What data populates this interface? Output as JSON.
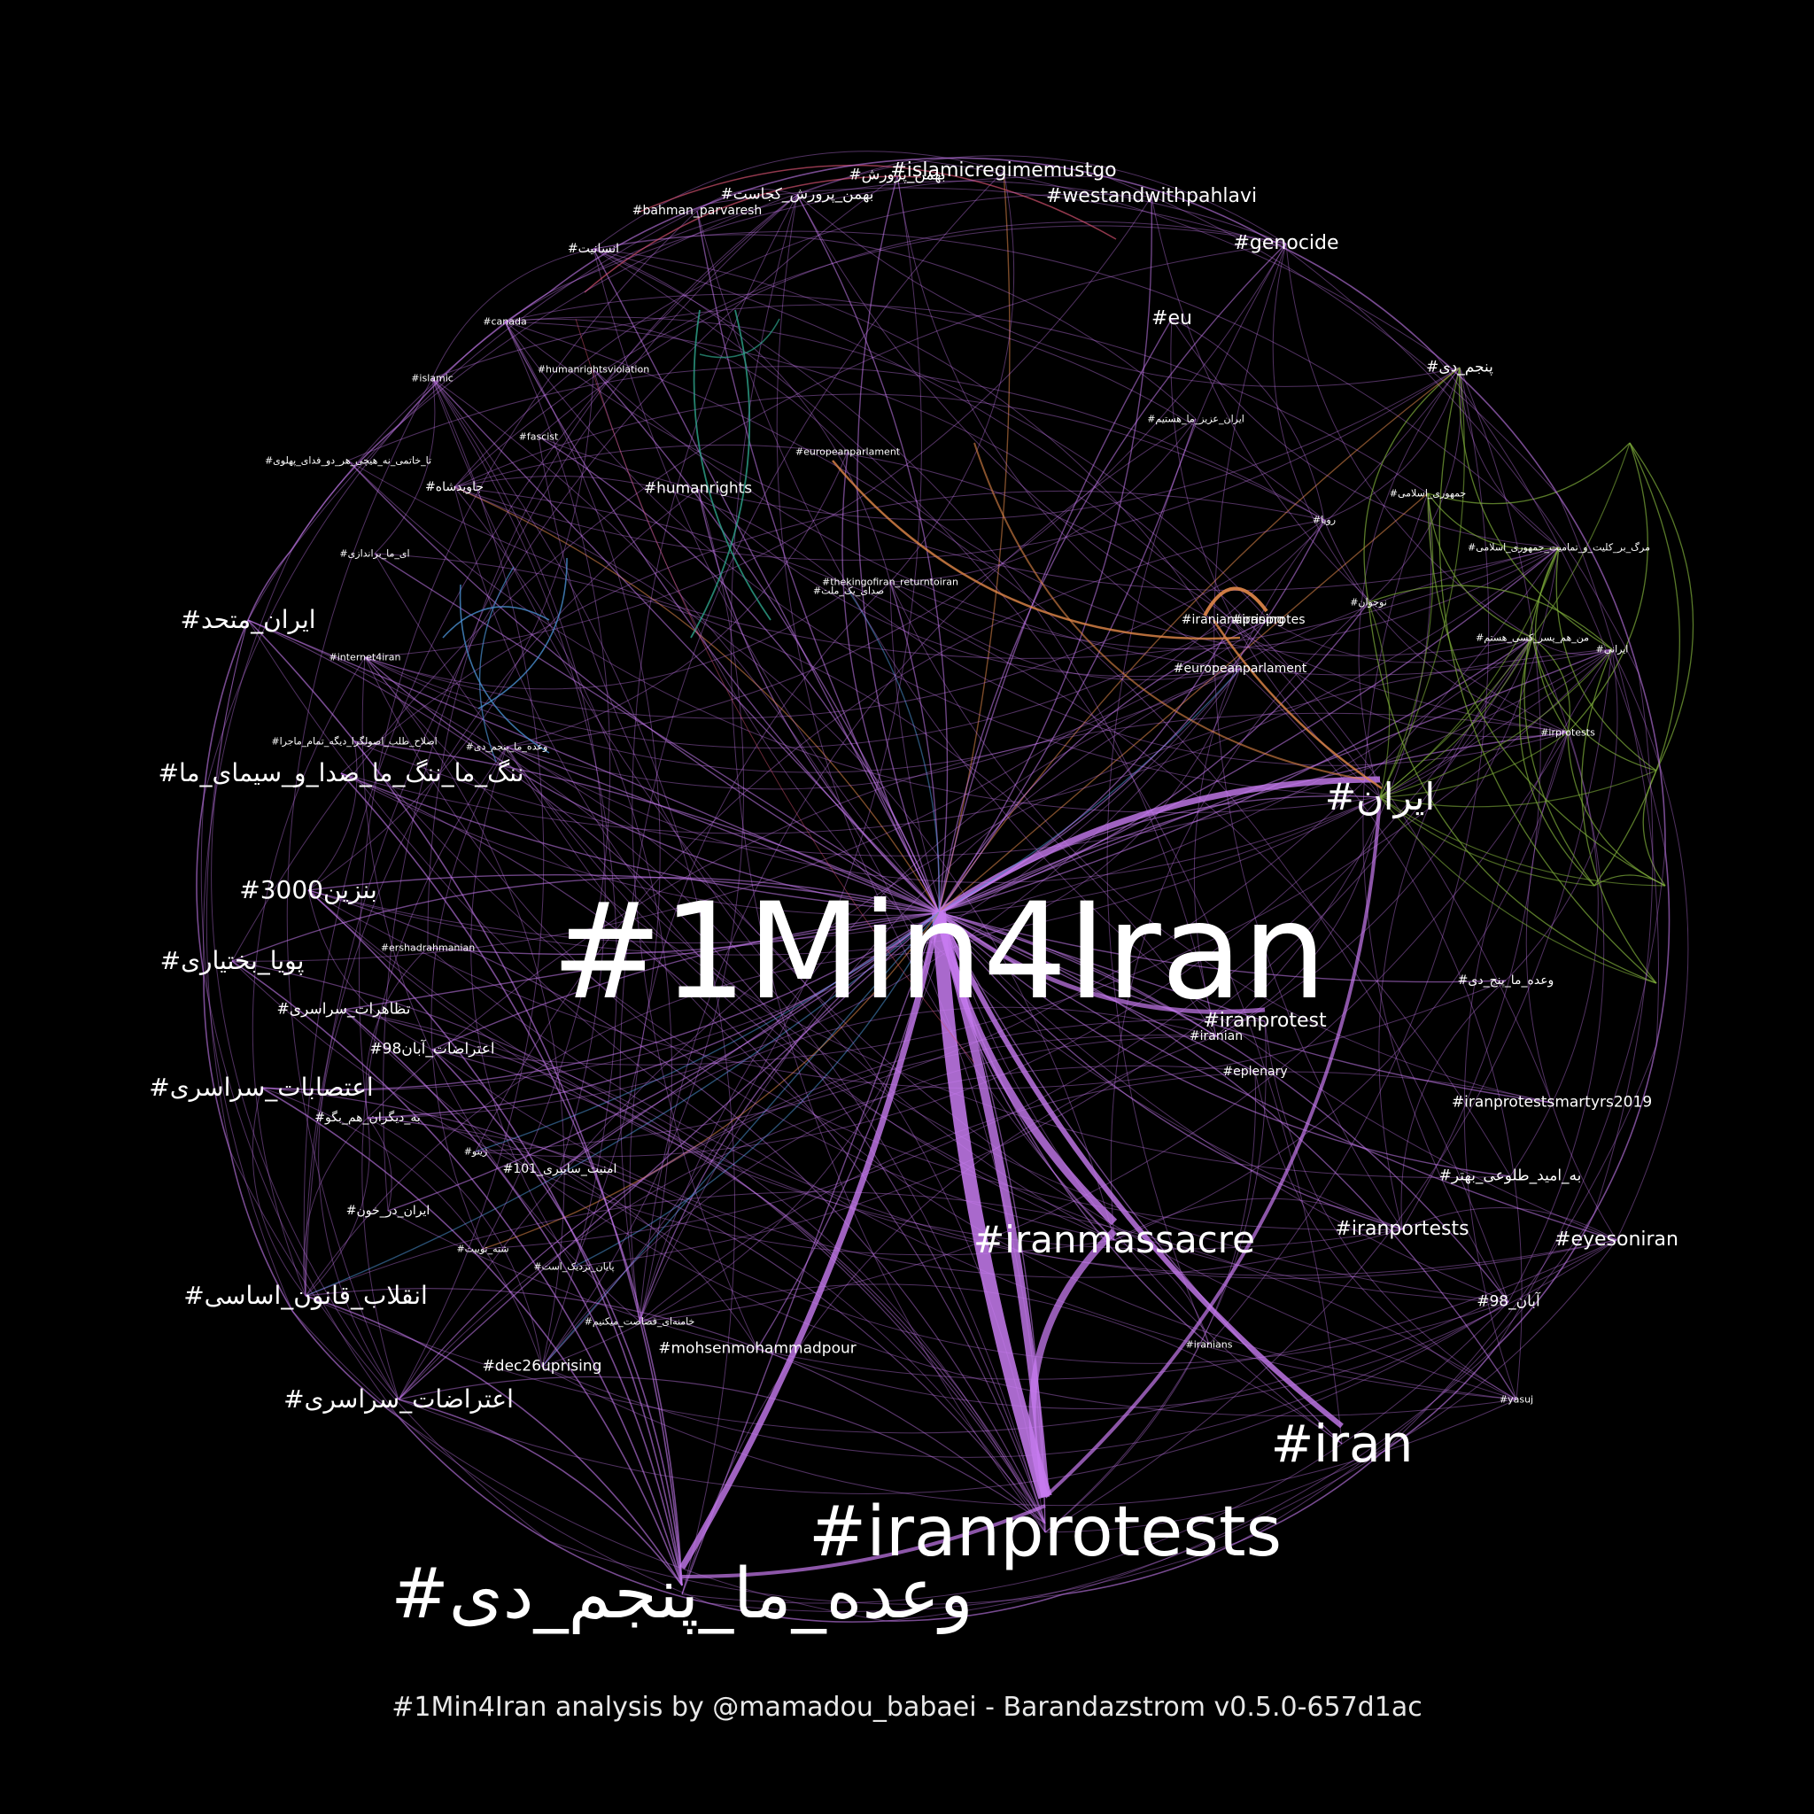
{
  "colors": {
    "background": "#000000",
    "label": "#ffffff",
    "edge_main": "#c77bf0",
    "edge_green": "#7fae3a",
    "edge_orange": "#e2884a",
    "edge_teal": "#2ea58c",
    "edge_blue": "#4a8fd0",
    "edge_red": "#d0506e"
  },
  "caption": "#1Min4Iran analysis by @mamadou_babaei - Barandazstrom v0.5.0-657d1ac",
  "nodes": [
    {
      "id": "hub",
      "text": "#1Min4Iran",
      "tier": 1
    },
    {
      "id": "iranprotests",
      "text": "#iranprotests",
      "tier": 2
    },
    {
      "id": "vaadeh",
      "text": "#وعده_ما_پنجم_دی",
      "tier": 2
    },
    {
      "id": "iran",
      "text": "#iran",
      "tier": 3
    },
    {
      "id": "iranmassacre",
      "text": "#iranmassacre",
      "tier": 4
    },
    {
      "id": "iran_fa",
      "text": "#ایران",
      "tier": 4
    },
    {
      "id": "nang",
      "text": "#ننگ_ما_ننگ_ما_صدا_و_سیمای_ما",
      "tier": 5
    },
    {
      "id": "iran_mottahed",
      "text": "#ایران_متحد",
      "tier": 5
    },
    {
      "id": "benzin",
      "text": "#بنزین3000",
      "tier": 5
    },
    {
      "id": "pouya",
      "text": "#پویا_بختیاری",
      "tier": 5
    },
    {
      "id": "etesabat",
      "text": "#اعتصابات_سراسری",
      "tier": 5
    },
    {
      "id": "enghelab",
      "text": "#انقلاب_قانون_اساسی",
      "tier": 5
    },
    {
      "id": "eterazat",
      "text": "#اعتراضات_سراسری",
      "tier": 5
    },
    {
      "id": "irmustgo",
      "text": "#islamicregimemustgo",
      "tier": 6
    },
    {
      "id": "westand",
      "text": "#westandwithpahlavi",
      "tier": 6
    },
    {
      "id": "genocide",
      "text": "#genocide",
      "tier": 6
    },
    {
      "id": "eu",
      "text": "#eu",
      "tier": 6
    },
    {
      "id": "iranprotest",
      "text": "#iranprotest",
      "tier": 6
    },
    {
      "id": "eyesoniran",
      "text": "#eyesoniran",
      "tier": 6
    },
    {
      "id": "iranportests",
      "text": "#iranportests",
      "tier": 6
    },
    {
      "id": "humanrights",
      "text": "#humanrights",
      "tier": 7
    },
    {
      "id": "mohsen",
      "text": "#mohsenmohammadpour",
      "tier": 7
    },
    {
      "id": "dec26",
      "text": "#dec26uprising",
      "tier": 7
    },
    {
      "id": "martyrs",
      "text": "#iranprotestsmartyrs2019",
      "tier": 7
    },
    {
      "id": "beomid",
      "text": "#به_امید_طلوعی_بهتر",
      "tier": 7
    },
    {
      "id": "aban98",
      "text": "#آبان_98",
      "tier": 7
    },
    {
      "id": "panjomdey",
      "text": "#پنجم_دی",
      "tier": 7
    },
    {
      "id": "tazahorat",
      "text": "#تظاهرات_سراسری",
      "tier": 7
    },
    {
      "id": "eterazat_aban",
      "text": "#اعتراضات_آبان98",
      "tier": 7
    },
    {
      "id": "bahman_k",
      "text": "#بهمن_پرورش_کجاست",
      "tier": 7
    },
    {
      "id": "bahman",
      "text": "#بهمن_پرورش",
      "tier": 7
    },
    {
      "id": "bahman_en",
      "text": "#bahman_parvaresh",
      "tier": 8
    },
    {
      "id": "ensaniat",
      "text": "#انسانیت",
      "tier": 8
    },
    {
      "id": "eup_big",
      "text": "#europeanparlament",
      "tier": 8
    },
    {
      "id": "iranianuprising",
      "text": "#iranianuprising",
      "tier": 8
    },
    {
      "id": "ir_protes",
      "text": "#iranprotes",
      "tier": 8
    },
    {
      "id": "iranian",
      "text": "#iranian",
      "tier": 8
    },
    {
      "id": "eplenary",
      "text": "#eplenary",
      "tier": 8
    },
    {
      "id": "vaadeh2",
      "text": "#وعده_ما_پنج_دی",
      "tier": 8
    },
    {
      "id": "javidshah",
      "text": "#جاویدشاه",
      "tier": 8
    },
    {
      "id": "bedigaran",
      "text": "#به_دیگران_هم_بگو",
      "tier": 8
    },
    {
      "id": "iranprotests_in_blood",
      "text": "#ایران_در_خون",
      "tier": 8
    },
    {
      "id": "amniat",
      "text": "#امنیت_سایبری_101",
      "tier": 8
    },
    {
      "id": "thekingofiran",
      "text": "#thekingofiran_returntoiran",
      "tier": 9
    },
    {
      "id": "sedaye",
      "text": "#صدای_یک_ملت",
      "tier": 9
    },
    {
      "id": "eup_small",
      "text": "#europeanparlament",
      "tier": 9
    },
    {
      "id": "canada",
      "text": "#canada",
      "tier": 9
    },
    {
      "id": "islamic",
      "text": "#islamic",
      "tier": 9
    },
    {
      "id": "hrviolation",
      "text": "#humanrightsviolation",
      "tier": 9
    },
    {
      "id": "fascist",
      "text": "#fascist",
      "tier": 9
    },
    {
      "id": "internet4iran",
      "text": "#internet4iran",
      "tier": 9
    },
    {
      "id": "ershad",
      "text": "#ershadrahmanian",
      "tier": 9
    },
    {
      "id": "jomhuri",
      "text": "#جمهوری_اسلامی",
      "tier": 9
    },
    {
      "id": "marg",
      "text": "#مرگ_بر_کلیت_و_تمامیت_جمهوری_اسلامی",
      "tier": 9
    },
    {
      "id": "khamenei",
      "text": "#خامنه‌ای_قصاصت_میکنیم",
      "tier": 9
    },
    {
      "id": "payan",
      "text": "#پایان_نزدیک_است",
      "tier": 9
    },
    {
      "id": "ta_khatami",
      "text": "#تا_خاتمی_نه_هیچی_هر_دو_فدای_پهلوی",
      "tier": 9
    },
    {
      "id": "vaadeh3",
      "text": "#وعده_ما_پنجم_دی",
      "tier": 9
    },
    {
      "id": "eslah",
      "text": "#اصلاح_طلب_اصولگرا_دیگه_تمام_ماجرا",
      "tier": 9
    },
    {
      "id": "iranians",
      "text": "#iranians",
      "tier": 9
    },
    {
      "id": "yasuj",
      "text": "#yasuj",
      "tier": 9
    },
    {
      "id": "irprotests",
      "text": "#irprotests",
      "tier": 9
    },
    {
      "id": "ey_iran",
      "text": "#ای_ما_براندازی",
      "tier": 9
    },
    {
      "id": "iran_zadeh",
      "text": "#ایران_عزیز_ما_هستیم",
      "tier": 9
    },
    {
      "id": "rooya",
      "text": "#رویا",
      "tier": 9
    },
    {
      "id": "sheh",
      "text": "#شته_توییت",
      "tier": 9
    },
    {
      "id": "zhino",
      "text": "#ژینو",
      "tier": 9
    },
    {
      "id": "iranian_zan",
      "text": "#ایرانی",
      "tier": 9
    },
    {
      "id": "manham",
      "text": "#من_هم_پسر_کسی_هستم",
      "tier": 9
    },
    {
      "id": "nojavan",
      "text": "#نوجوان",
      "tier": 9
    }
  ]
}
